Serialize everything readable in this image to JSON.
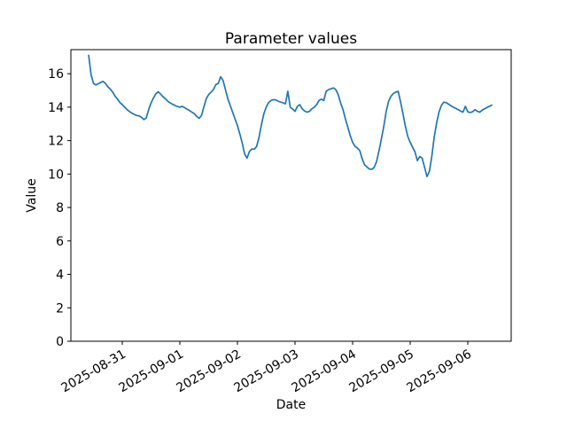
{
  "chart_data": {
    "type": "line",
    "title": "Parameter values",
    "xlabel": "Date",
    "ylabel": "Value",
    "line_color": "#1f77b4",
    "axes_color": "#000000",
    "background_color": "#ffffff",
    "legend": null,
    "grid": false,
    "ylim": [
      0,
      17.44
    ],
    "y_ticks": [
      0,
      2,
      4,
      6,
      8,
      10,
      12,
      14,
      16
    ],
    "xlim_days": [
      -0.8923,
      6.7538
    ],
    "x_tick_days": [
      0,
      1,
      2,
      3,
      4,
      5,
      6
    ],
    "x_tick_labels": [
      "2025-08-31",
      "2025-09-01",
      "2025-09-02",
      "2025-09-03",
      "2025-09-04",
      "2025-09-05",
      "2025-09-06"
    ],
    "x_tick_rotation_deg": 30,
    "series": [
      {
        "name": "Parameter values",
        "start": "2025-08-30 10:00",
        "interval_hours": 1,
        "start_offset_days": -0.5833,
        "values": [
          17.1,
          15.95,
          15.42,
          15.33,
          15.4,
          15.48,
          15.54,
          15.42,
          15.22,
          15.08,
          14.9,
          14.66,
          14.48,
          14.28,
          14.15,
          14.0,
          13.85,
          13.74,
          13.64,
          13.57,
          13.5,
          13.48,
          13.4,
          13.26,
          13.35,
          13.85,
          14.25,
          14.55,
          14.8,
          14.92,
          14.78,
          14.62,
          14.5,
          14.35,
          14.25,
          14.17,
          14.1,
          14.04,
          14.0,
          14.05,
          13.97,
          13.88,
          13.8,
          13.7,
          13.62,
          13.45,
          13.33,
          13.5,
          14.0,
          14.5,
          14.75,
          14.9,
          15.05,
          15.35,
          15.42,
          15.82,
          15.6,
          15.05,
          14.5,
          14.1,
          13.7,
          13.3,
          12.9,
          12.4,
          11.85,
          11.2,
          10.95,
          11.35,
          11.5,
          11.48,
          11.65,
          12.2,
          12.95,
          13.6,
          14.0,
          14.28,
          14.4,
          14.45,
          14.43,
          14.36,
          14.3,
          14.26,
          14.2,
          14.95,
          14.0,
          13.88,
          13.75,
          14.05,
          14.15,
          13.9,
          13.77,
          13.7,
          13.75,
          13.9,
          14.0,
          14.15,
          14.4,
          14.48,
          14.4,
          14.95,
          15.05,
          15.1,
          15.15,
          15.05,
          14.75,
          14.25,
          13.85,
          13.3,
          12.8,
          12.3,
          11.9,
          11.66,
          11.55,
          11.4,
          10.9,
          10.55,
          10.42,
          10.3,
          10.28,
          10.4,
          10.75,
          11.4,
          12.1,
          12.85,
          13.75,
          14.35,
          14.65,
          14.82,
          14.9,
          14.95,
          14.3,
          13.6,
          12.85,
          12.25,
          11.9,
          11.6,
          11.32,
          10.8,
          11.05,
          10.95,
          10.4,
          9.85,
          10.15,
          11.05,
          12.2,
          13.05,
          13.7,
          14.1,
          14.3,
          14.27,
          14.18,
          14.08,
          14.0,
          13.93,
          13.85,
          13.77,
          13.7,
          14.05,
          13.72,
          13.68,
          13.72,
          13.85,
          13.75,
          13.7,
          13.82,
          13.9,
          13.98,
          14.05,
          14.12
        ]
      }
    ]
  }
}
